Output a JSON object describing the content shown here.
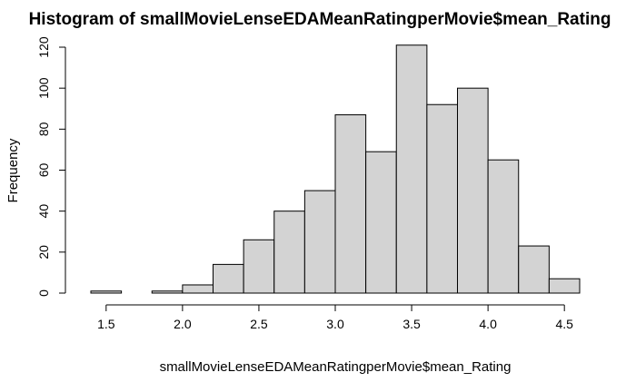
{
  "chart_data": {
    "type": "bar",
    "subtype": "histogram",
    "title": "Histogram of smallMovieLenseEDAMeanRatingperMovie$mean_Rating",
    "xlabel": "smallMovieLenseEDAMeanRatingperMovie$mean_Rating",
    "ylabel": "Frequency",
    "bins": [
      {
        "from": 1.4,
        "to": 1.6,
        "count": 1
      },
      {
        "from": 1.6,
        "to": 1.8,
        "count": 0
      },
      {
        "from": 1.8,
        "to": 2.0,
        "count": 1
      },
      {
        "from": 2.0,
        "to": 2.2,
        "count": 4
      },
      {
        "from": 2.2,
        "to": 2.4,
        "count": 14
      },
      {
        "from": 2.4,
        "to": 2.6,
        "count": 26
      },
      {
        "from": 2.6,
        "to": 2.8,
        "count": 40
      },
      {
        "from": 2.8,
        "to": 3.0,
        "count": 50
      },
      {
        "from": 3.0,
        "to": 3.2,
        "count": 87
      },
      {
        "from": 3.2,
        "to": 3.4,
        "count": 69
      },
      {
        "from": 3.4,
        "to": 3.6,
        "count": 121
      },
      {
        "from": 3.6,
        "to": 3.8,
        "count": 92
      },
      {
        "from": 3.8,
        "to": 4.0,
        "count": 100
      },
      {
        "from": 4.0,
        "to": 4.2,
        "count": 65
      },
      {
        "from": 4.2,
        "to": 4.4,
        "count": 23
      },
      {
        "from": 4.4,
        "to": 4.6,
        "count": 7
      }
    ],
    "xlim": [
      1.4,
      4.6
    ],
    "ylim": [
      0,
      120
    ],
    "xticks": [
      "1.5",
      "2.0",
      "2.5",
      "3.0",
      "3.5",
      "4.0",
      "4.5"
    ],
    "yticks": [
      "0",
      "20",
      "40",
      "60",
      "80",
      "100",
      "120"
    ],
    "bar_color": "#d3d3d3",
    "grid": false,
    "legend": "none"
  }
}
